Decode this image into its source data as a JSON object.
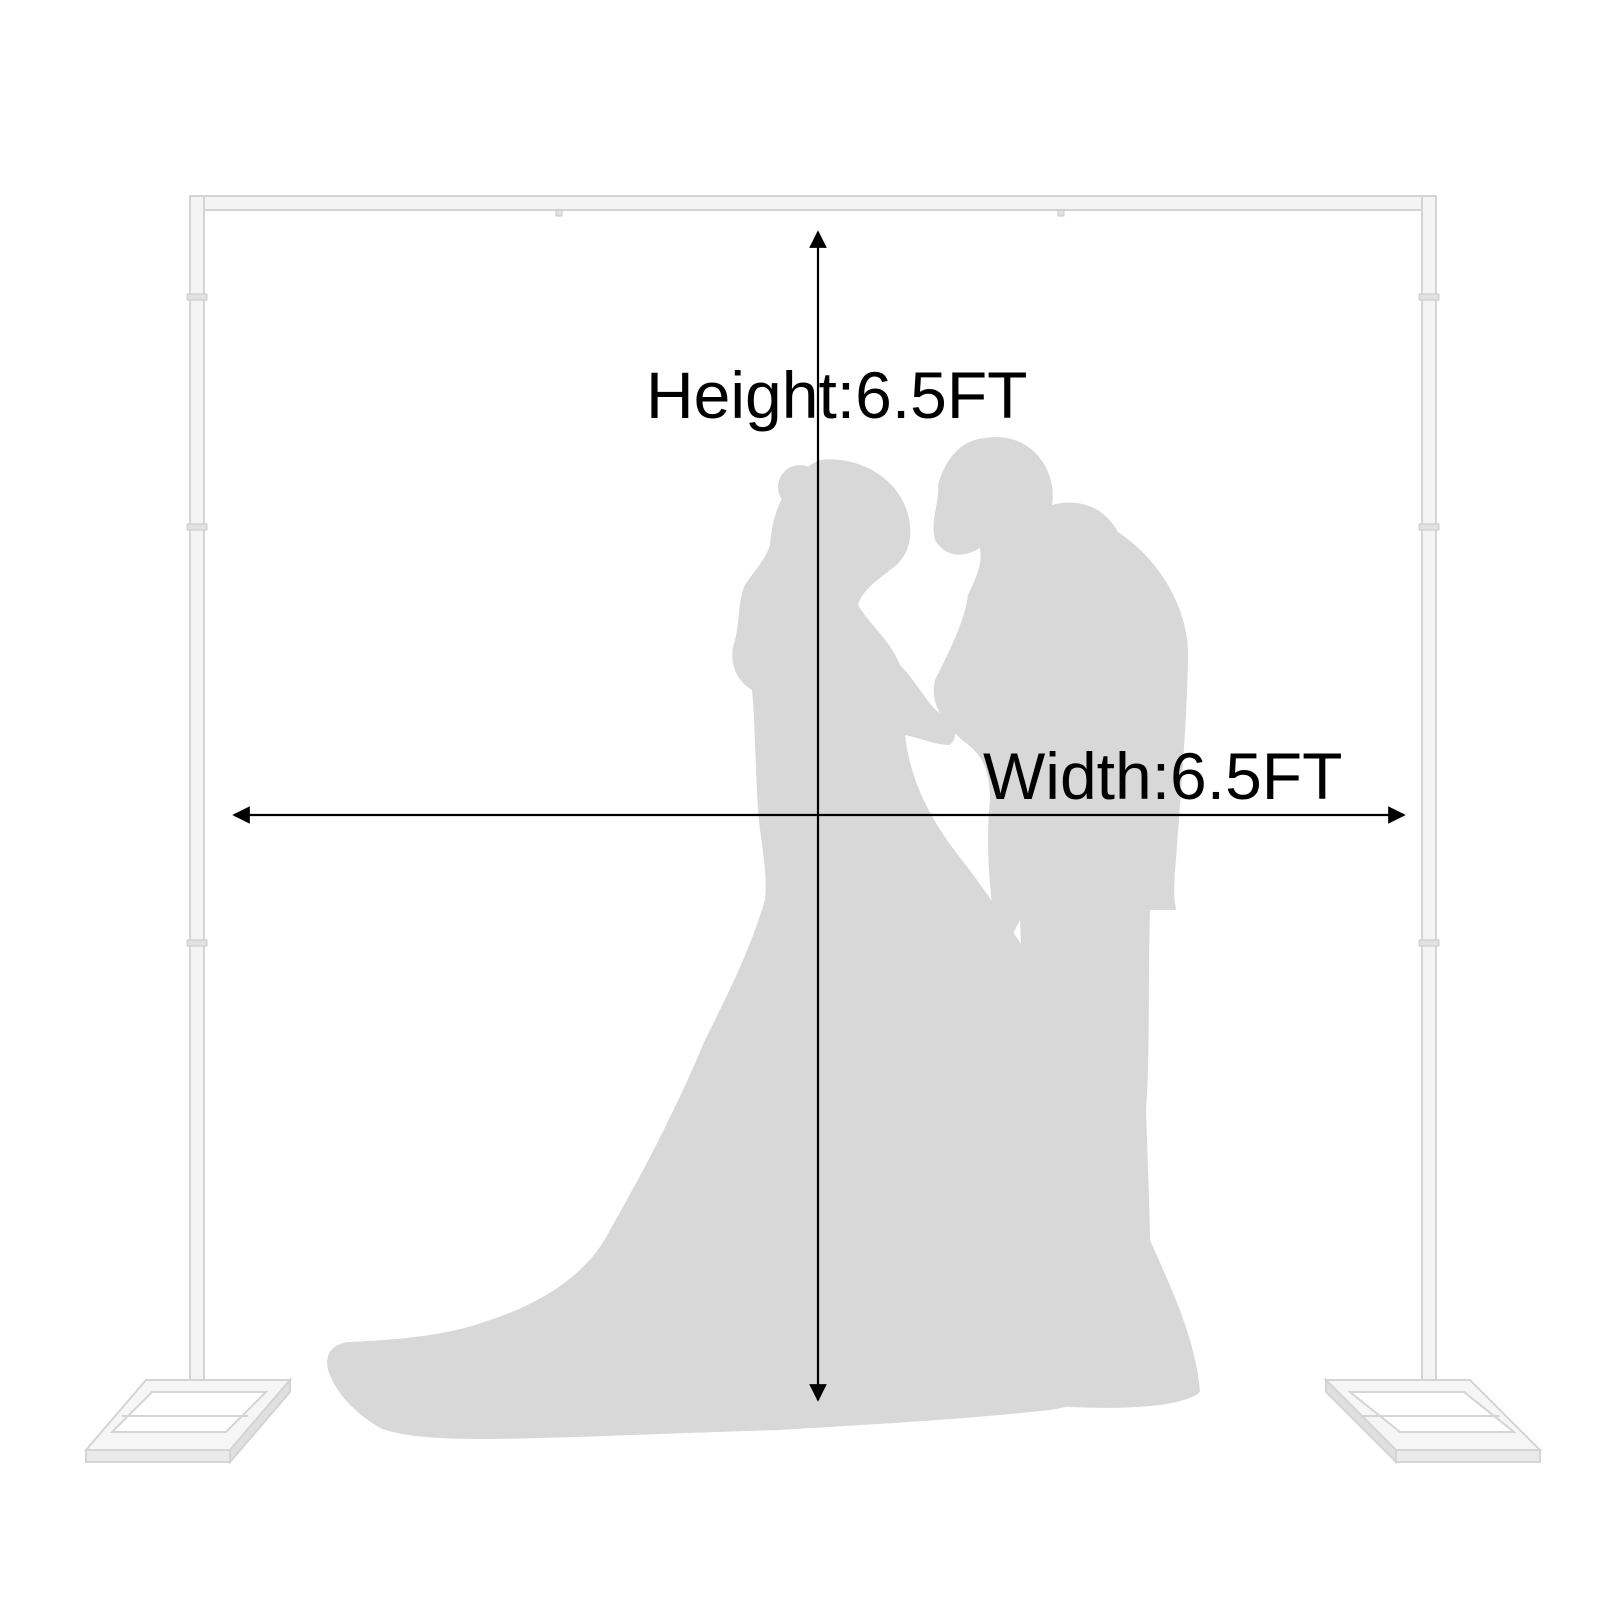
{
  "labels": {
    "height": "Height:6.5FT",
    "width": "Width:6.5FT"
  },
  "colors": {
    "background": "#ffffff",
    "frame": "#ececec",
    "frame_edge": "#d4d4d4",
    "silhouette": "#d8d8d8",
    "arrow": "#000000",
    "text": "#000000"
  },
  "illustration": {
    "frame": "backdrop-stand-frame",
    "figures": "wedding-couple-silhouette"
  }
}
